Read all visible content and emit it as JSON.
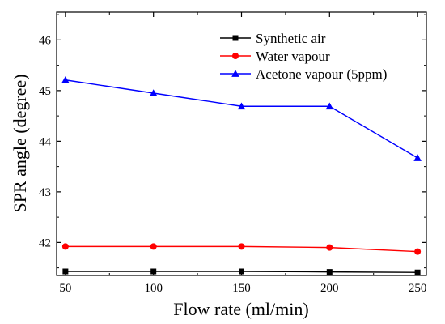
{
  "chart_data": {
    "type": "line",
    "title": "",
    "xlabel": "Flow rate (ml/min)",
    "ylabel": "SPR angle (degree)",
    "x": [
      50,
      100,
      150,
      200,
      250
    ],
    "xticks": [
      "50",
      "100",
      "150",
      "200",
      "250"
    ],
    "xlim": [
      45,
      255
    ],
    "yticks": [
      "42",
      "43",
      "44",
      "45",
      "46"
    ],
    "ylim": [
      41.35,
      46.55
    ],
    "grid": false,
    "legend_position": "top-right",
    "series": [
      {
        "name": "Synthetic air",
        "color": "#000000",
        "marker": "square",
        "values": [
          41.43,
          41.43,
          41.43,
          41.42,
          41.41
        ]
      },
      {
        "name": "Water vapour",
        "color": "#ff0000",
        "marker": "circle",
        "values": [
          41.92,
          41.92,
          41.92,
          41.9,
          41.82
        ]
      },
      {
        "name": "Acetone vapour (5ppm)",
        "color": "#0000ff",
        "marker": "triangle",
        "values": [
          45.21,
          44.95,
          44.69,
          44.69,
          43.67
        ]
      }
    ]
  }
}
